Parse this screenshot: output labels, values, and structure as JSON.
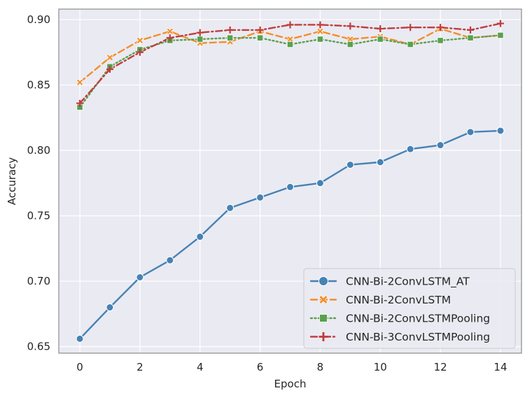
{
  "chart_data": {
    "type": "line",
    "xlabel": "Epoch",
    "ylabel": "Accuracy",
    "xlim": [
      -0.7,
      14.7
    ],
    "ylim": [
      0.645,
      0.908
    ],
    "xticks": [
      0,
      2,
      4,
      6,
      8,
      10,
      12,
      14
    ],
    "yticks": [
      0.65,
      0.7,
      0.75,
      0.8,
      0.85,
      0.9
    ],
    "xtick_labels": [
      "0",
      "2",
      "4",
      "6",
      "8",
      "10",
      "12",
      "14"
    ],
    "ytick_labels": [
      "0.65",
      "0.70",
      "0.75",
      "0.80",
      "0.85",
      "0.90"
    ],
    "grid": true,
    "legend_position": "bottom-right",
    "x": [
      0,
      1,
      2,
      3,
      4,
      5,
      6,
      7,
      8,
      9,
      10,
      11,
      12,
      13,
      14
    ],
    "series": [
      {
        "name": "CNN-Bi-2ConvLSTM_AT",
        "color": "#4682b4",
        "dash": "solid",
        "marker": "circle",
        "values": [
          0.656,
          0.68,
          0.703,
          0.716,
          0.734,
          0.756,
          0.764,
          0.772,
          0.775,
          0.789,
          0.791,
          0.801,
          0.804,
          0.814,
          0.815
        ]
      },
      {
        "name": "CNN-Bi-2ConvLSTM",
        "color": "#f28e2b",
        "dash": "dashed",
        "marker": "x",
        "values": [
          0.852,
          0.871,
          0.884,
          0.891,
          0.882,
          0.883,
          0.891,
          0.885,
          0.891,
          0.885,
          0.887,
          0.881,
          0.893,
          0.886,
          0.888
        ]
      },
      {
        "name": "CNN-Bi-2ConvLSTMPooling",
        "color": "#59a14f",
        "dash": "dotted",
        "marker": "square",
        "values": [
          0.833,
          0.864,
          0.877,
          0.884,
          0.885,
          0.886,
          0.886,
          0.881,
          0.885,
          0.881,
          0.885,
          0.881,
          0.884,
          0.886,
          0.888
        ]
      },
      {
        "name": "CNN-Bi-3ConvLSTMPooling",
        "color": "#c03d3e",
        "dash": "dashdot",
        "marker": "plus",
        "values": [
          0.836,
          0.862,
          0.875,
          0.886,
          0.89,
          0.892,
          0.892,
          0.896,
          0.896,
          0.895,
          0.893,
          0.894,
          0.894,
          0.892,
          0.897
        ]
      }
    ]
  }
}
